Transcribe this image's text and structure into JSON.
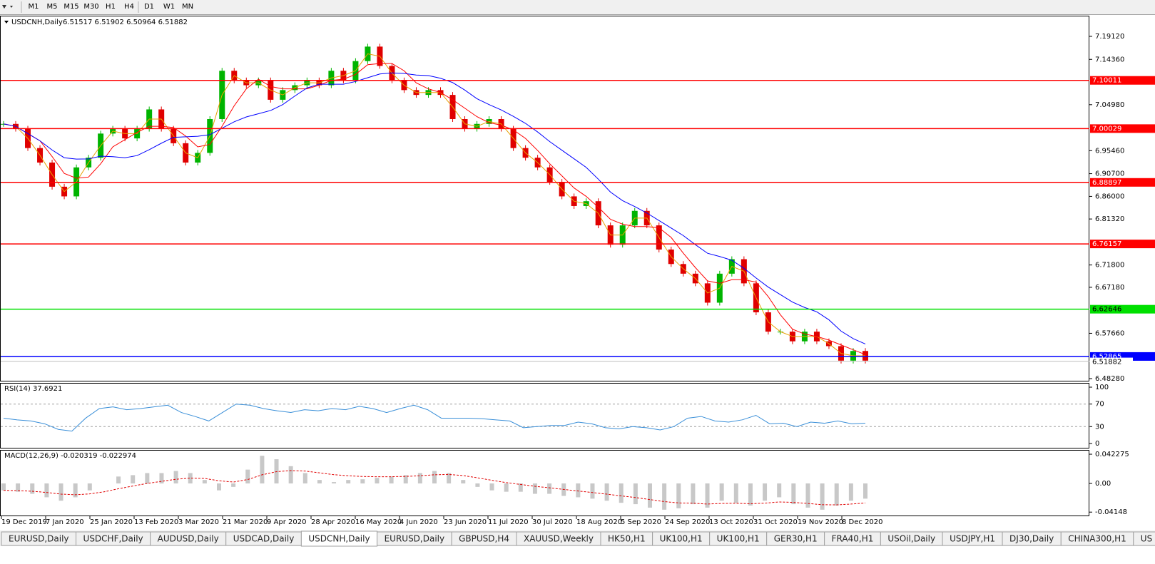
{
  "toolbar": {
    "timeframes": [
      "M1",
      "M5",
      "M15",
      "M30",
      "H1",
      "H4",
      "D1",
      "W1",
      "MN"
    ]
  },
  "chart": {
    "symbol": "USDCNH,Daily",
    "ohlc": "6.51517 6.51902 6.50964 6.51882",
    "ylim": [
      6.4769,
      7.234
    ],
    "yticks": [
      {
        "value": 7.1912,
        "label": "7.19120"
      },
      {
        "value": 7.1436,
        "label": "7.14360"
      },
      {
        "value": 7.0498,
        "label": "7.04980"
      },
      {
        "value": 6.9546,
        "label": "6.95460"
      },
      {
        "value": 6.907,
        "label": "6.90700"
      },
      {
        "value": 6.86,
        "label": "6.86000"
      },
      {
        "value": 6.8132,
        "label": "6.81320"
      },
      {
        "value": 6.718,
        "label": "6.71800"
      },
      {
        "value": 6.6718,
        "label": "6.67180"
      },
      {
        "value": 6.5766,
        "label": "6.57660"
      },
      {
        "value": 6.4828,
        "label": "6.48280"
      }
    ],
    "levels": [
      {
        "value": 7.10011,
        "color": "#ff0000"
      },
      {
        "value": 7.00029,
        "color": "#ff0000"
      },
      {
        "value": 6.88897,
        "color": "#ff0000"
      },
      {
        "value": 6.76157,
        "color": "#ff0000"
      },
      {
        "value": 6.62646,
        "color": "#00e000"
      },
      {
        "value": 6.52865,
        "color": "#0000ff"
      }
    ],
    "current_price": 6.51882,
    "closes": [
      7.01,
      7.0,
      6.96,
      6.93,
      6.88,
      6.86,
      6.92,
      6.94,
      6.99,
      7.0,
      6.98,
      7.0,
      7.04,
      7.0,
      6.97,
      6.93,
      6.95,
      7.02,
      7.12,
      7.1,
      7.09,
      7.1,
      7.06,
      7.08,
      7.09,
      7.1,
      7.09,
      7.12,
      7.1,
      7.14,
      7.17,
      7.13,
      7.1,
      7.08,
      7.07,
      7.08,
      7.07,
      7.02,
      7.0,
      7.01,
      7.02,
      7.0,
      6.96,
      6.94,
      6.92,
      6.89,
      6.86,
      6.84,
      6.85,
      6.8,
      6.76,
      6.8,
      6.83,
      6.8,
      6.75,
      6.72,
      6.7,
      6.68,
      6.64,
      6.7,
      6.73,
      6.68,
      6.62,
      6.58,
      6.58,
      6.56,
      6.58,
      6.56,
      6.55,
      6.52,
      6.54,
      6.52
    ],
    "date_labels": [
      "19 Dec 2019",
      "7 Jan 2020",
      "25 Jan 2020",
      "13 Feb 2020",
      "3 Mar 2020",
      "21 Mar 2020",
      "9 Apr 2020",
      "28 Apr 2020",
      "16 May 2020",
      "4 Jun 2020",
      "23 Jun 2020",
      "11 Jul 2020",
      "30 Jul 2020",
      "18 Aug 2020",
      "5 Sep 2020",
      "24 Sep 2020",
      "13 Oct 2020",
      "31 Oct 2020",
      "19 Nov 2020",
      "8 Dec 2020"
    ]
  },
  "rsi": {
    "header": "RSI(14) 37.6921",
    "ylim": [
      0,
      100
    ],
    "yticks": [
      100,
      70,
      30,
      0
    ],
    "values": [
      45,
      42,
      40,
      35,
      25,
      22,
      45,
      62,
      65,
      60,
      62,
      65,
      68,
      55,
      48,
      40,
      55,
      70,
      68,
      62,
      58,
      55,
      60,
      58,
      62,
      60,
      66,
      62,
      55,
      62,
      68,
      60,
      45,
      45,
      45,
      44,
      42,
      40,
      28,
      30,
      32,
      32,
      38,
      35,
      28,
      26,
      30,
      28,
      24,
      30,
      45,
      48,
      40,
      38,
      42,
      50,
      35,
      36,
      30,
      38,
      36,
      40,
      35,
      36
    ]
  },
  "macd": {
    "header": "MACD(12,26,9) -0.020319 -0.022974",
    "ylim": [
      -0.0464,
      0.0485
    ],
    "yticks": [
      0.042275,
      {
        "value": 0,
        "label": "0.00"
      },
      -0.04148
    ],
    "values": [
      -0.01,
      -0.012,
      -0.015,
      -0.02,
      -0.025,
      -0.02,
      -0.01,
      0,
      0.01,
      0.012,
      0.015,
      0.015,
      0.018,
      0.015,
      0.005,
      -0.01,
      -0.005,
      0.02,
      0.04,
      0.035,
      0.025,
      0.015,
      0.005,
      0.002,
      0.005,
      0.006,
      0.008,
      0.01,
      0.012,
      0.015,
      0.018,
      0.015,
      0.005,
      -0.005,
      -0.01,
      -0.012,
      -0.012,
      -0.015,
      -0.015,
      -0.018,
      -0.02,
      -0.022,
      -0.025,
      -0.028,
      -0.03,
      -0.035,
      -0.038,
      -0.036,
      -0.03,
      -0.035,
      -0.025,
      -0.028,
      -0.032,
      -0.025,
      -0.02,
      -0.03,
      -0.035,
      -0.038,
      -0.032,
      -0.025,
      -0.022
    ]
  },
  "tabs": {
    "items": [
      "EURUSD,Daily",
      "USDCHF,Daily",
      "AUDUSD,Daily",
      "USDCAD,Daily",
      "USDCNH,Daily",
      "EURUSD,Daily",
      "GBPUSD,H4",
      "XAUUSD,Weekly",
      "HK50,H1",
      "UK100,H1",
      "UK100,H1",
      "GER30,H1",
      "FRA40,H1",
      "USOil,Daily",
      "USDJPY,H1",
      "DJ30,Daily",
      "CHINA300,H1",
      "US"
    ],
    "active": 4
  }
}
